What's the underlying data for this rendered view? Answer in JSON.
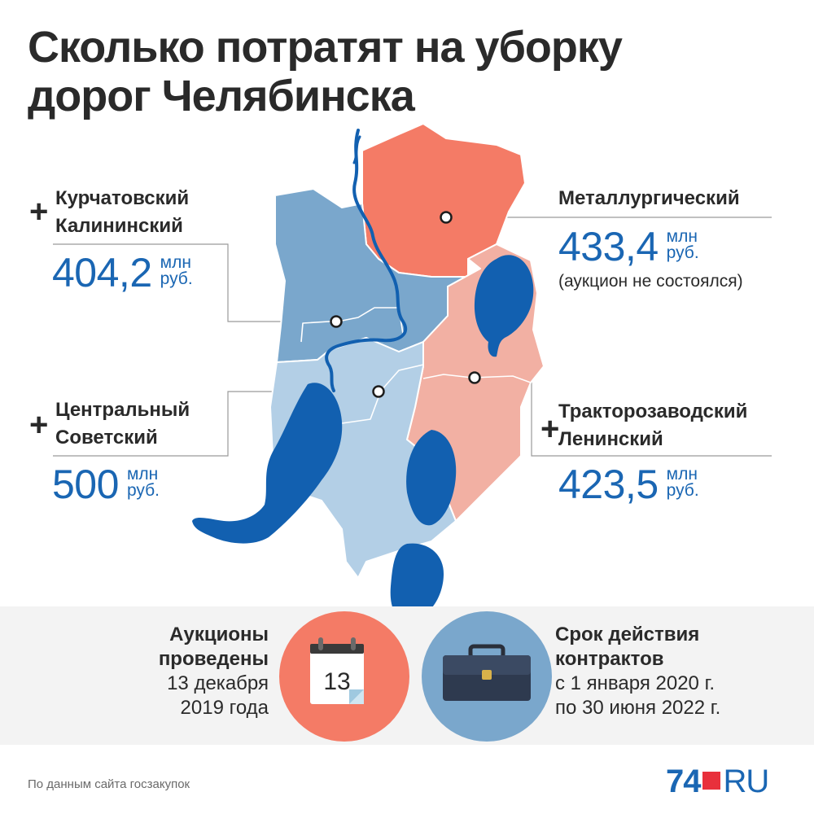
{
  "title": {
    "line1": "Сколько потратят на уборку",
    "line2": "дорог Челябинска"
  },
  "districts": {
    "kurchatovsky_kalininsky": {
      "plus": "+",
      "name1": "Курчатовский",
      "name2": "Калининский",
      "amount": "404,2",
      "unit1": "млн",
      "unit2": "руб."
    },
    "tsentralny_sovetsky": {
      "plus": "+",
      "name1": "Центральный",
      "name2": "Советский",
      "amount": "500",
      "unit1": "млн",
      "unit2": "руб."
    },
    "metallurgichesky": {
      "name1": "Металлургический",
      "amount": "433,4",
      "unit1": "млн",
      "unit2": "руб.",
      "note": "(аукцион не состоялся)"
    },
    "traktorozavodsky_leninsky": {
      "plus": "+",
      "name1": "Тракторозаводский",
      "name2": "Ленинский",
      "amount": "423,5",
      "unit1": "млн",
      "unit2": "руб."
    }
  },
  "colors": {
    "blue_dark_zone": "#7aa7cc",
    "blue_light_zone": "#b3cfe6",
    "orange_zone": "#f47b66",
    "pink_zone": "#f2b0a3",
    "water": "#1260b0",
    "accent_blue": "#1a66b3",
    "calendar_circle": "#f47b66",
    "briefcase_circle": "#7aa7cc"
  },
  "auction": {
    "label1": "Аукционы",
    "label2": "проведены",
    "date1": "13 декабря",
    "date2": "2019 года",
    "calendar_day": "13",
    "icon": "calendar-icon"
  },
  "contract": {
    "label1": "Срок действия",
    "label2": "контрактов",
    "period1": "с 1 января 2020 г.",
    "period2": "по 30 июня 2022 г.",
    "icon": "briefcase-icon"
  },
  "source": "По данным сайта госзакупок",
  "logo": {
    "number": "74",
    "suffix": "RU"
  }
}
